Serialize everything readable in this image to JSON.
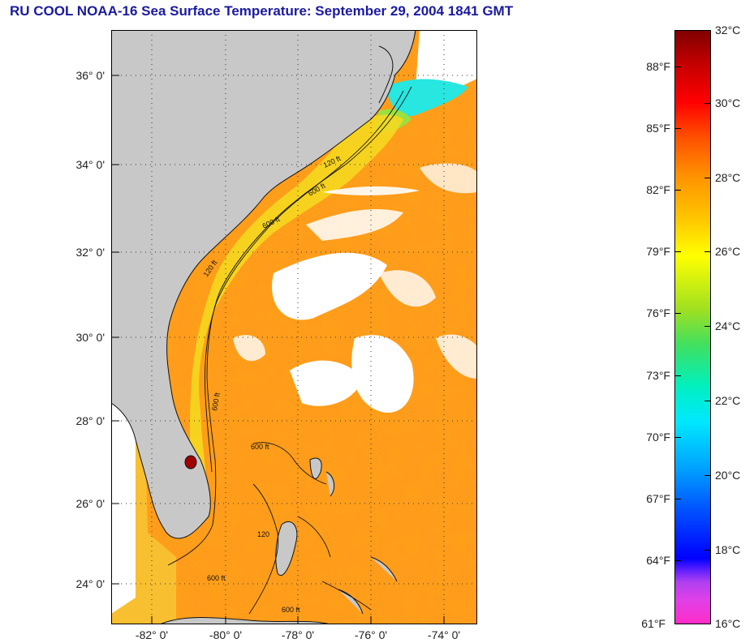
{
  "header": {
    "title": "RU COOL  NOAA-16  Sea Surface Temperature:  September 29, 2004 1841 GMT"
  },
  "map": {
    "lat_labels": [
      "36° 0'",
      "34° 0'",
      "32° 0'",
      "30° 0'",
      "28° 0'",
      "26° 0'",
      "24° 0'"
    ],
    "lon_labels": [
      "-82° 0'",
      "-80° 0'",
      "-78° 0'",
      "-76° 0'",
      "-74° 0'"
    ],
    "isobath_labels": [
      "120 ft",
      "600 ft",
      "600 ft",
      "120 ft",
      "600 ft",
      "600 ft",
      "120",
      "600 ft",
      "600 ft"
    ],
    "colors": {
      "land": "#c8c8c8",
      "cloud": "#ffffff",
      "warm_water": "#ff9a1e",
      "shelf_water": "#f0e020",
      "cool_water": "#20e0e0"
    }
  },
  "colorbar": {
    "fahrenheit_labels": [
      "88°F",
      "85°F",
      "82°F",
      "79°F",
      "76°F",
      "73°F",
      "70°F",
      "67°F",
      "64°F",
      "61°F"
    ],
    "celsius_labels": [
      "32°C",
      "30°C",
      "28°C",
      "26°C",
      "24°C",
      "22°C",
      "20°C",
      "18°C",
      "16°C"
    ]
  }
}
